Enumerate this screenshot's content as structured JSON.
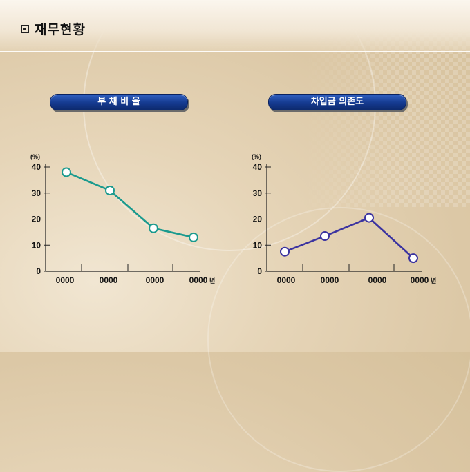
{
  "page": {
    "title": "재무현황",
    "title_icon": "square-bullet-icon"
  },
  "colors": {
    "pill_blue": "#153a8f",
    "series1": "#1a9a8e",
    "series2": "#3b33a0",
    "axis": "#222222"
  },
  "chart_data": [
    {
      "type": "line",
      "title": "부 채 비 율",
      "ylabel": "(%)",
      "categories": [
        "0000",
        "0000",
        "0000",
        "0000"
      ],
      "x_unit_suffix": "년",
      "series": [
        {
          "values": [
            38,
            31,
            16.5,
            13
          ]
        }
      ],
      "ylim": [
        0,
        40
      ],
      "yticks": [
        0,
        10,
        20,
        30,
        40
      ],
      "grid": false
    },
    {
      "type": "line",
      "title": "차입금 의존도",
      "ylabel": "(%)",
      "categories": [
        "0000",
        "0000",
        "0000",
        "0000"
      ],
      "x_unit_suffix": "년",
      "series": [
        {
          "values": [
            7.5,
            13.5,
            20.5,
            5
          ]
        }
      ],
      "ylim": [
        0,
        40
      ],
      "yticks": [
        0,
        10,
        20,
        30,
        40
      ],
      "grid": false
    }
  ]
}
